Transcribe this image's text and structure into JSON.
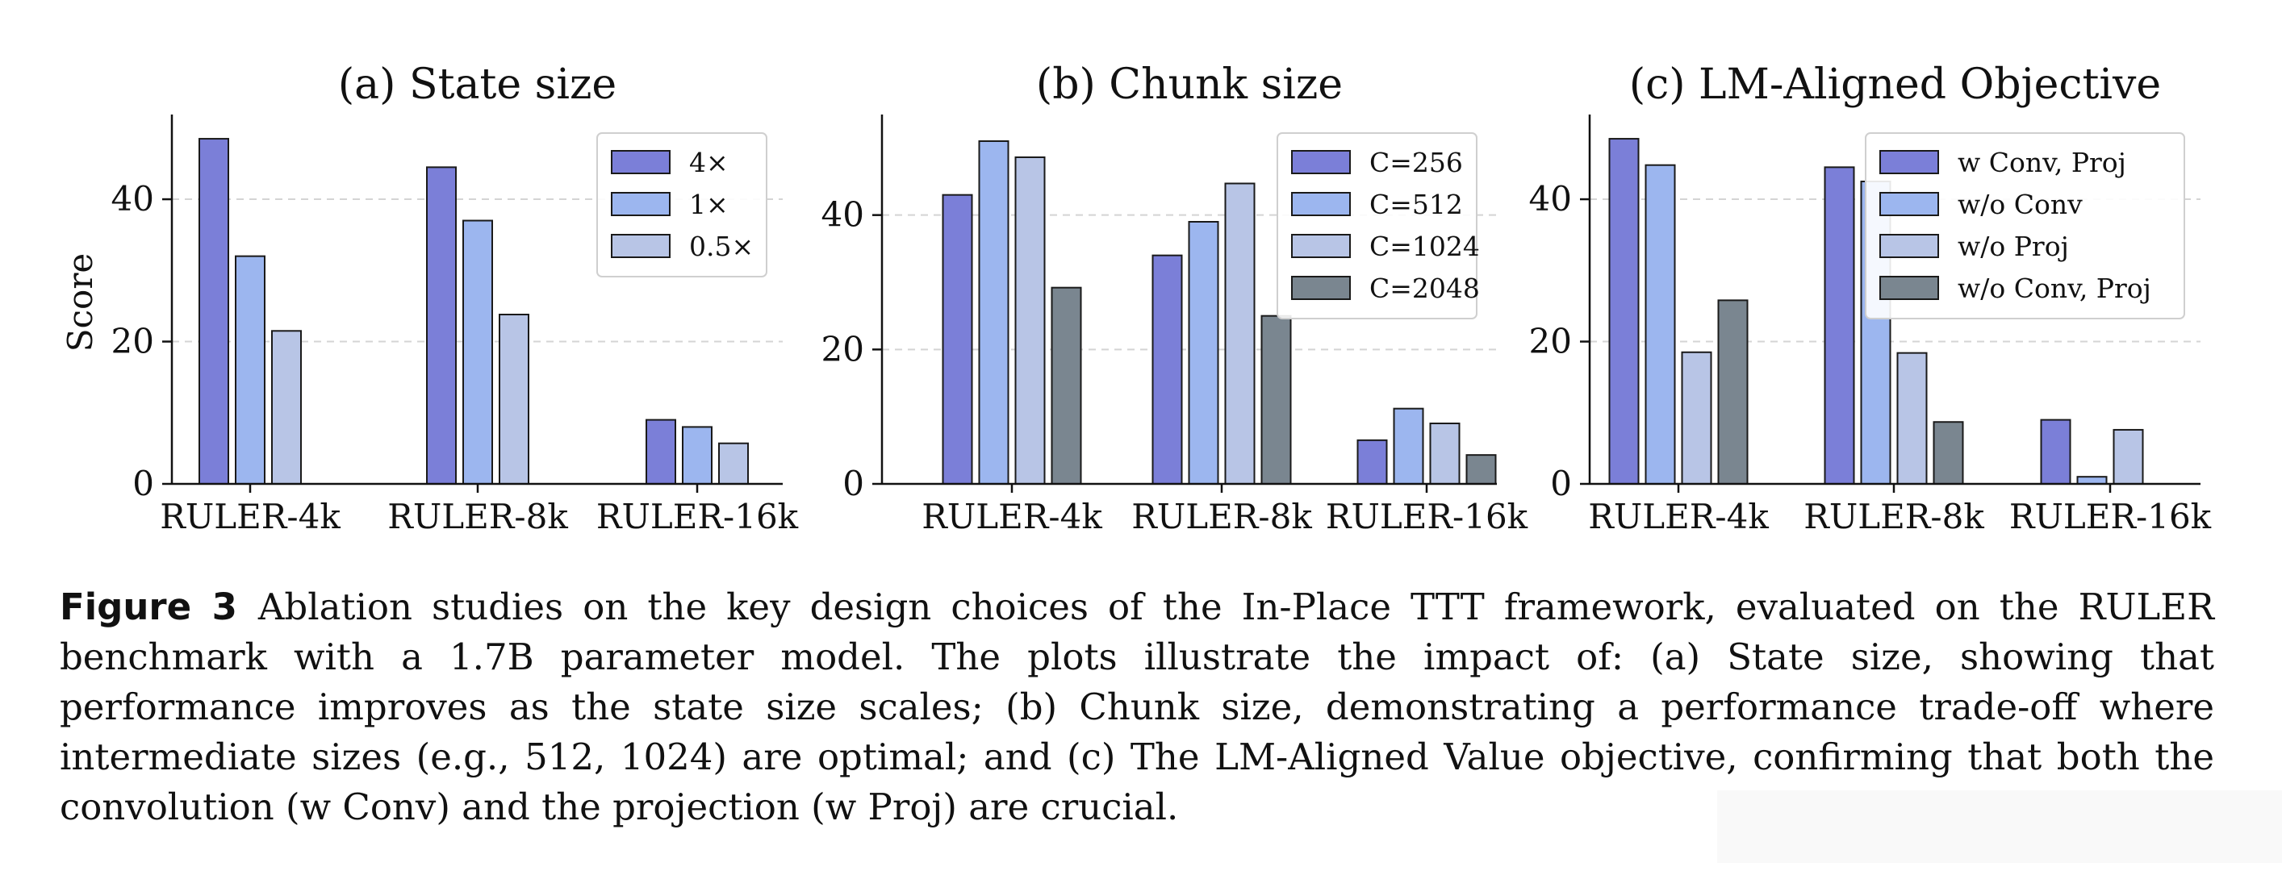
{
  "colors": {
    "series": [
      "#7b7fd8",
      "#9cb6ef",
      "#b8c5e6",
      "#7a8690"
    ],
    "bar_edge": "#1a1a1a",
    "axis": "#111111",
    "grid": "#d4d4d4"
  },
  "chart_data": [
    {
      "type": "bar",
      "title": "(a) State size",
      "xlabel": "",
      "ylabel": "Score",
      "ylim": [
        0,
        51
      ],
      "yticks": [
        0,
        20,
        40
      ],
      "grid": true,
      "legend_position": "top-right",
      "categories": [
        "RULER-4k",
        "RULER-8k",
        "RULER-16k"
      ],
      "series": [
        {
          "name": "4×",
          "values": [
            48.5,
            44.5,
            9.0
          ]
        },
        {
          "name": "1×",
          "values": [
            32.0,
            37.0,
            8.0
          ]
        },
        {
          "name": "0.5×",
          "values": [
            21.5,
            23.8,
            5.7
          ]
        }
      ]
    },
    {
      "type": "bar",
      "title": "(b) Chunk size",
      "xlabel": "",
      "ylabel": "",
      "ylim": [
        0,
        54
      ],
      "yticks": [
        0,
        20,
        40
      ],
      "grid": true,
      "legend_position": "top-right",
      "categories": [
        "RULER-4k",
        "RULER-8k",
        "RULER-16k"
      ],
      "series": [
        {
          "name": "C=256",
          "values": [
            43.0,
            34.0,
            6.5
          ]
        },
        {
          "name": "C=512",
          "values": [
            51.0,
            39.0,
            11.2
          ]
        },
        {
          "name": "C=1024",
          "values": [
            48.6,
            44.7,
            9.0
          ]
        },
        {
          "name": "C=2048",
          "values": [
            29.2,
            25.0,
            4.3
          ]
        }
      ]
    },
    {
      "type": "bar",
      "title": "(c) LM-Aligned Objective",
      "xlabel": "",
      "ylabel": "",
      "ylim": [
        0,
        51
      ],
      "yticks": [
        0,
        20,
        40
      ],
      "grid": true,
      "legend_position": "top-right",
      "categories": [
        "RULER-4k",
        "RULER-8k",
        "RULER-16k"
      ],
      "series": [
        {
          "name": "w Conv, Proj",
          "values": [
            48.5,
            44.5,
            9.0
          ]
        },
        {
          "name": "w/o Conv",
          "values": [
            44.8,
            42.5,
            1.0
          ]
        },
        {
          "name": "w/o Proj",
          "values": [
            18.5,
            18.4,
            7.6
          ]
        },
        {
          "name": "w/o Conv, Proj",
          "values": [
            25.8,
            8.7,
            0
          ]
        }
      ]
    }
  ],
  "caption": {
    "label": "Figure 3",
    "text": "Ablation studies on the key design choices of the In-Place TTT framework, evaluated on the RULER benchmark with a 1.7B parameter model. The plots illustrate the impact of: (a) State size, showing that performance improves as the state size scales; (b) Chunk size, demonstrating a performance trade-off where intermediate sizes (e.g., 512, 1024) are optimal; and (c) The LM-Aligned Value objective, confirming that both the convolution (w Conv) and the projection (w Proj) are crucial."
  }
}
